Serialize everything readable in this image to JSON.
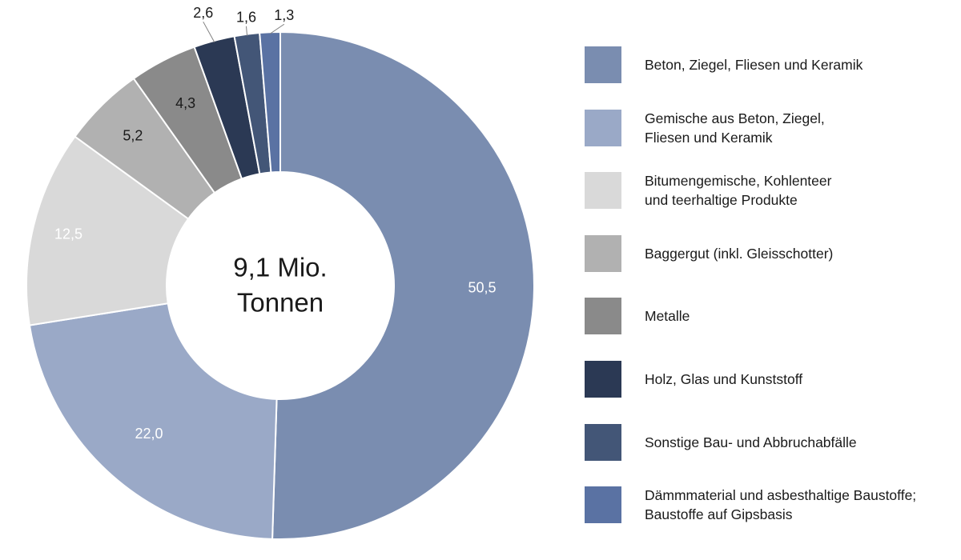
{
  "chart_data": {
    "type": "pie",
    "donut": true,
    "center_label": {
      "line1": "9,1 Mio.",
      "line2": "Tonnen"
    },
    "slices": [
      {
        "name": "Beton, Ziegel, Fliesen und Keramik",
        "name_lines": [
          "Beton, Ziegel, Fliesen und Keramik"
        ],
        "value": 50.5,
        "label": "50,5",
        "color": "#7a8db0",
        "label_color": "#ffffff"
      },
      {
        "name": "Gemische aus Beton, Ziegel, Fliesen und Keramik",
        "name_lines": [
          "Gemische aus Beton, Ziegel,",
          "Fliesen und Keramik"
        ],
        "value": 22.0,
        "label": "22,0",
        "color": "#9aa9c7",
        "label_color": "#ffffff"
      },
      {
        "name": "Bitumengemische, Kohlenteer und teerhaltige Produkte",
        "name_lines": [
          "Bitumengemische, Kohlenteer",
          "und teerhaltige Produkte"
        ],
        "value": 12.5,
        "label": "12,5",
        "color": "#d9d9d9",
        "label_color": "#ffffff"
      },
      {
        "name": "Baggergut (inkl. Gleisschotter)",
        "name_lines": [
          "Baggergut (inkl. Gleisschotter)"
        ],
        "value": 5.2,
        "label": "5,2",
        "color": "#b1b1b1",
        "label_color": "#1a1a1a"
      },
      {
        "name": "Metalle",
        "name_lines": [
          "Metalle"
        ],
        "value": 4.3,
        "label": "4,3",
        "color": "#8a8a8a",
        "label_color": "#1a1a1a"
      },
      {
        "name": "Holz, Glas und Kunststoff",
        "name_lines": [
          "Holz, Glas und Kunststoff"
        ],
        "value": 2.6,
        "label": "2,6",
        "color": "#2b3954",
        "label_color": "#1a1a1a"
      },
      {
        "name": "Sonstige Bau- und Abbruchabfälle",
        "name_lines": [
          "Sonstige Bau- und Abbruchabfälle"
        ],
        "value": 1.6,
        "label": "1,6",
        "color": "#435677",
        "label_color": "#1a1a1a"
      },
      {
        "name": "Dämmmaterial und asbesthaltige Baustoffe; Baustoffe auf Gipsbasis",
        "name_lines": [
          "Dämmmaterial und asbesthaltige Baustoffe;",
          "Baustoffe auf Gipsbasis"
        ],
        "value": 1.3,
        "label": "1,3",
        "color": "#5a72a3",
        "label_color": "#1a1a1a"
      }
    ],
    "legend_position": "right"
  }
}
